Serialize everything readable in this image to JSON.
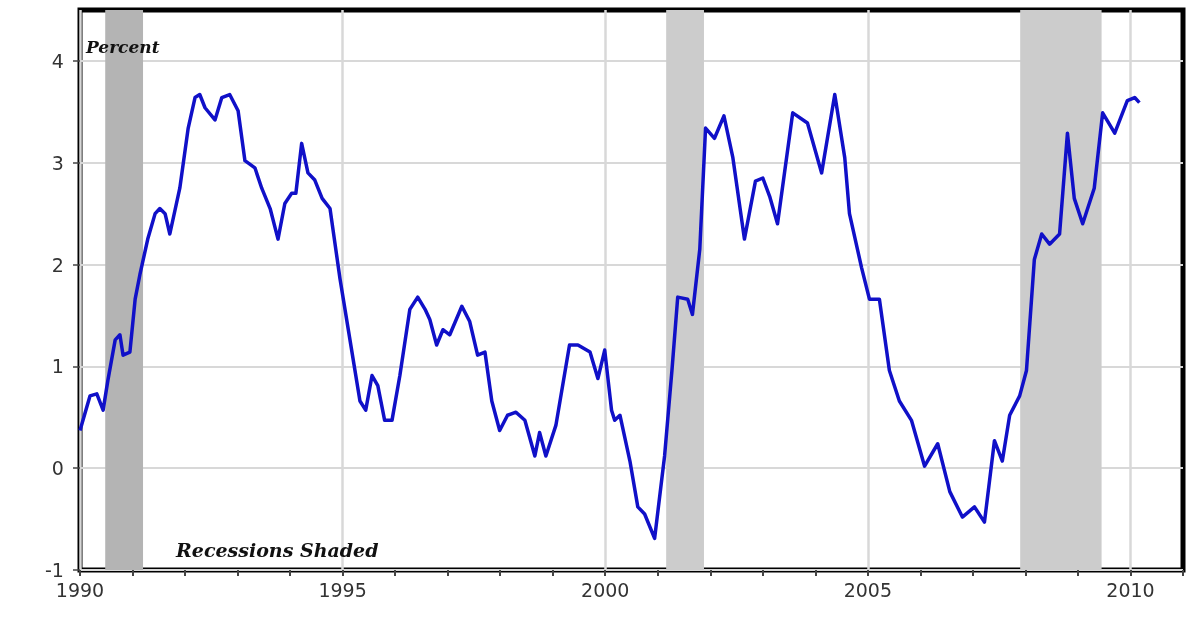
{
  "chart_data": {
    "type": "line",
    "ylabel": "Percent",
    "annotations": [
      "Recessions Shaded"
    ],
    "x": [
      1990.0,
      1990.19,
      1990.32,
      1990.44,
      1990.53,
      1990.67,
      1990.76,
      1990.82,
      1990.95,
      1991.05,
      1991.14,
      1991.29,
      1991.43,
      1991.52,
      1991.62,
      1991.71,
      1991.9,
      1992.06,
      1992.19,
      1992.28,
      1992.38,
      1992.57,
      1992.7,
      1992.85,
      1993.01,
      1993.14,
      1993.33,
      1993.46,
      1993.62,
      1993.77,
      1993.9,
      1994.03,
      1994.11,
      1994.22,
      1994.34,
      1994.47,
      1994.61,
      1994.76,
      1994.95,
      1995.14,
      1995.33,
      1995.44,
      1995.56,
      1995.67,
      1995.8,
      1995.94,
      1996.09,
      1996.28,
      1996.43,
      1996.57,
      1996.66,
      1996.79,
      1996.91,
      1997.04,
      1997.27,
      1997.42,
      1997.57,
      1997.71,
      1997.84,
      1997.99,
      1998.14,
      1998.3,
      1998.47,
      1998.66,
      1998.75,
      1998.87,
      1999.06,
      1999.32,
      1999.48,
      1999.71,
      1999.86,
      1999.99,
      2000.12,
      2000.18,
      2000.28,
      2000.47,
      2000.62,
      2000.75,
      2000.94,
      2001.13,
      2001.27,
      2001.38,
      2001.57,
      2001.66,
      2001.8,
      2001.91,
      2002.08,
      2002.26,
      2002.43,
      2002.65,
      2002.86,
      2003.0,
      2003.13,
      2003.28,
      2003.57,
      2003.85,
      2004.12,
      2004.37,
      2004.56,
      2004.65,
      2004.88,
      2005.03,
      2005.22,
      2005.41,
      2005.6,
      2005.83,
      2006.08,
      2006.33,
      2006.56,
      2006.8,
      2007.03,
      2007.22,
      2007.41,
      2007.56,
      2007.7,
      2007.89,
      2008.02,
      2008.17,
      2008.31,
      2008.46,
      2008.65,
      2008.8,
      2008.93,
      2009.09,
      2009.31,
      2009.47,
      2009.7,
      2009.94,
      2010.08,
      2010.17
    ],
    "series": [
      {
        "color": "#1010c8",
        "values": [
          0.37,
          0.71,
          0.73,
          0.57,
          0.86,
          1.26,
          1.31,
          1.11,
          1.14,
          1.66,
          1.9,
          2.25,
          2.5,
          2.55,
          2.5,
          2.3,
          2.75,
          3.34,
          3.64,
          3.67,
          3.54,
          3.42,
          3.64,
          3.67,
          3.51,
          3.02,
          2.95,
          2.75,
          2.55,
          2.25,
          2.6,
          2.7,
          2.7,
          3.19,
          2.9,
          2.83,
          2.65,
          2.55,
          1.86,
          1.26,
          0.66,
          0.57,
          0.91,
          0.81,
          0.47,
          0.47,
          0.91,
          1.56,
          1.68,
          1.56,
          1.46,
          1.21,
          1.36,
          1.31,
          1.59,
          1.44,
          1.11,
          1.14,
          0.66,
          0.37,
          0.52,
          0.55,
          0.47,
          0.12,
          0.35,
          0.12,
          0.42,
          1.21,
          1.21,
          1.14,
          0.88,
          1.16,
          0.57,
          0.47,
          0.52,
          0.07,
          -0.38,
          -0.45,
          -0.69,
          0.12,
          0.96,
          1.68,
          1.66,
          1.51,
          2.15,
          3.34,
          3.24,
          3.46,
          3.05,
          2.25,
          2.82,
          2.85,
          2.67,
          2.4,
          3.49,
          3.39,
          2.9,
          3.67,
          3.05,
          2.5,
          1.97,
          1.66,
          1.66,
          0.96,
          0.66,
          0.47,
          0.02,
          0.24,
          -0.23,
          -0.48,
          -0.38,
          -0.53,
          0.27,
          0.07,
          0.52,
          0.71,
          0.96,
          2.05,
          2.3,
          2.2,
          2.3,
          3.29,
          2.65,
          2.4,
          2.75,
          3.49,
          3.29,
          3.61,
          3.64,
          3.59
        ]
      }
    ],
    "xlim": [
      1990,
      2011
    ],
    "xticks": [
      1990,
      {
        "value": 1991,
        "label": null
      },
      {
        "value": 1992,
        "label": null
      },
      {
        "value": 1993,
        "label": null
      },
      {
        "value": 1994,
        "label": null
      },
      1995,
      {
        "value": 1996,
        "label": null
      },
      {
        "value": 1997,
        "label": null
      },
      {
        "value": 1998,
        "label": null
      },
      {
        "value": 1999,
        "label": null
      },
      2000,
      {
        "value": 2001,
        "label": null
      },
      {
        "value": 2002,
        "label": null
      },
      {
        "value": 2003,
        "label": null
      },
      {
        "value": 2004,
        "label": null
      },
      2005,
      {
        "value": 2006,
        "label": null
      },
      {
        "value": 2007,
        "label": null
      },
      {
        "value": 2008,
        "label": null
      },
      {
        "value": 2009,
        "label": null
      },
      2010,
      {
        "value": 2011,
        "label": null
      }
    ],
    "ylim": [
      -1,
      4.5
    ],
    "yticks": [
      -1,
      0,
      1,
      2,
      3,
      4
    ],
    "bands": [
      {
        "axis": "x",
        "from": 1990.48,
        "to": 1991.2,
        "color": "#b4b4b4"
      },
      {
        "axis": "x",
        "from": 2001.16,
        "to": 2001.88,
        "color": "#cccccc"
      },
      {
        "axis": "x",
        "from": 2007.9,
        "to": 2009.45,
        "color": "#cccccc"
      }
    ],
    "grid": true,
    "marker": "none"
  }
}
